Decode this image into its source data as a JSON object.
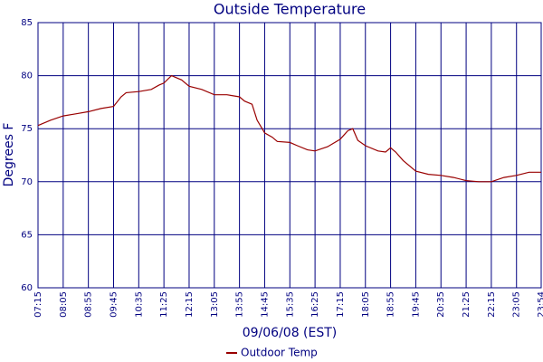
{
  "chart_data": {
    "type": "line",
    "title": "Outside Temperature",
    "x_label": "09/06/08 (EST)",
    "y_label": "Degrees F",
    "x": [
      "07:15",
      "07:40",
      "08:05",
      "08:30",
      "08:55",
      "09:20",
      "09:45",
      "10:00",
      "10:10",
      "10:35",
      "11:00",
      "11:15",
      "11:25",
      "11:40",
      "12:00",
      "12:15",
      "12:40",
      "13:05",
      "13:30",
      "13:55",
      "14:05",
      "14:20",
      "14:30",
      "14:45",
      "15:00",
      "15:10",
      "15:35",
      "15:50",
      "16:10",
      "16:25",
      "16:50",
      "17:15",
      "17:30",
      "17:40",
      "17:50",
      "18:05",
      "18:30",
      "18:45",
      "18:55",
      "19:05",
      "19:20",
      "19:45",
      "20:10",
      "20:35",
      "21:00",
      "21:25",
      "21:50",
      "22:15",
      "22:40",
      "23:05",
      "23:30",
      "23:54"
    ],
    "series": [
      {
        "name": "Outdoor Temp",
        "color": "#990000",
        "values": [
          75.3,
          75.8,
          76.2,
          76.4,
          76.6,
          76.9,
          77.1,
          78.0,
          78.4,
          78.5,
          78.7,
          79.1,
          79.3,
          80.0,
          79.6,
          79.0,
          78.7,
          78.2,
          78.2,
          78.0,
          77.6,
          77.3,
          75.8,
          74.6,
          74.2,
          73.8,
          73.7,
          73.4,
          73.0,
          72.9,
          73.3,
          74.0,
          74.8,
          75.0,
          73.9,
          73.4,
          72.9,
          72.8,
          73.2,
          72.8,
          72.0,
          71.0,
          70.7,
          70.6,
          70.4,
          70.1,
          70.0,
          70.0,
          70.4,
          70.6,
          70.9,
          70.9
        ]
      }
    ],
    "xlim": [
      "07:15",
      "23:54"
    ],
    "xticks": [
      "07:15",
      "08:05",
      "08:55",
      "09:45",
      "10:35",
      "11:25",
      "12:15",
      "13:05",
      "13:55",
      "14:45",
      "15:35",
      "16:25",
      "17:15",
      "18:05",
      "18:55",
      "19:45",
      "20:35",
      "21:25",
      "22:15",
      "23:05",
      "23:54"
    ],
    "ylim": [
      60,
      85
    ],
    "yticks": [
      60,
      65,
      70,
      75,
      80,
      85
    ],
    "grid": true,
    "grid_color": "#000080",
    "legend": "bottom"
  }
}
